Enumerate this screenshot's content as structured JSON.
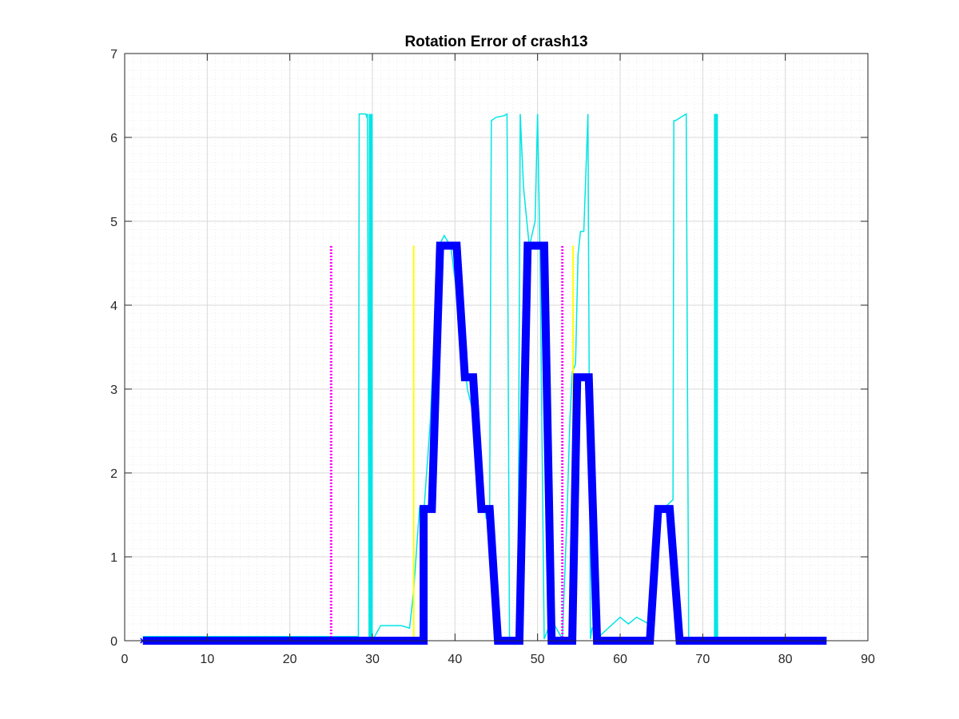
{
  "chart_data": {
    "type": "line",
    "title": "Rotation Error of crash13",
    "xlabel": "",
    "ylabel": "",
    "xlim": [
      0,
      90
    ],
    "ylim": [
      0,
      7
    ],
    "xticks": [
      0,
      10,
      20,
      30,
      40,
      50,
      60,
      70,
      80,
      90
    ],
    "yticks": [
      0,
      1,
      2,
      3,
      4,
      5,
      6,
      7
    ],
    "grid": true,
    "minor_grid": true,
    "legend": "none",
    "colors": {
      "thick_step": "#0000ff",
      "thin_trace": "#00e5e5",
      "magenta_marker": "#ff00ff",
      "yellow_marker": "#ffff00",
      "grid": "#d9d9d9",
      "minor_grid": "#ebebeb",
      "axes": "#262626"
    },
    "series": [
      {
        "style": "thick blue line with x markers",
        "x": [
          2.2,
          36.2,
          36.2,
          37.2,
          38.2,
          40.2,
          41.2,
          42.2,
          43.2,
          44.2,
          45.2,
          47.8,
          48.8,
          50.8,
          51.7,
          53.8,
          54.2,
          54.8,
          56.2,
          57.2,
          63.6,
          64.6,
          66.0,
          67.2,
          85.0
        ],
        "y": [
          0,
          0,
          1.57,
          1.57,
          4.71,
          4.71,
          3.14,
          3.14,
          1.57,
          1.57,
          0,
          0,
          4.71,
          4.71,
          0,
          0,
          0,
          3.14,
          3.14,
          0,
          0,
          1.57,
          1.57,
          0,
          0
        ]
      },
      {
        "style": "thin cyan line",
        "x": [
          2.2,
          28.0,
          28.3,
          28.4,
          29.2,
          29.3,
          29.4,
          29.6,
          30.1,
          31.0,
          32.0,
          33.5,
          34.5,
          35.0,
          35.7,
          36.2,
          37.0,
          38.0,
          38.7,
          39.5,
          40.5,
          41.5,
          42.5,
          43.0,
          43.8,
          44.2,
          44.4,
          45.0,
          46.0,
          46.3,
          46.6,
          47.0,
          47.6,
          47.9,
          48.3,
          49.0,
          49.7,
          50.0,
          50.3,
          50.8,
          51.7,
          53.0,
          53.3,
          53.6,
          53.9,
          54.2,
          54.6,
          54.9,
          55.2,
          55.6,
          56.1,
          56.4,
          56.6,
          57.2,
          57.5,
          58.0,
          60.0,
          61.0,
          62.0,
          63.5,
          64.5,
          65.5,
          66.4,
          66.5,
          66.7,
          68.0,
          68.3,
          68.6,
          69.0,
          71.5,
          71.6,
          71.8,
          72.0,
          75.0,
          80.0,
          85.0
        ],
        "y": [
          0.05,
          0.05,
          0.05,
          6.28,
          6.28,
          6.25,
          6.28,
          0.02,
          0.02,
          0.18,
          0.18,
          0.18,
          0.15,
          0.6,
          1.58,
          1.5,
          2.6,
          4.7,
          4.83,
          4.7,
          3.9,
          3.0,
          2.6,
          2.0,
          1.45,
          1.6,
          6.2,
          6.24,
          6.26,
          6.28,
          0.02,
          0.02,
          0.02,
          6.28,
          5.4,
          4.7,
          5.0,
          6.28,
          4.55,
          0.02,
          0.25,
          0.02,
          0.8,
          1.6,
          2.6,
          3.2,
          3.3,
          4.6,
          4.88,
          4.88,
          6.28,
          0.02,
          0.15,
          0.15,
          0.05,
          0.1,
          0.28,
          0.2,
          0.28,
          0.2,
          1.6,
          1.6,
          1.68,
          6.2,
          6.2,
          6.28,
          0.02,
          0.02,
          0.02,
          0.02,
          6.28,
          0.02,
          0.02,
          0.02,
          0.03,
          0.03
        ]
      },
      {
        "style": "cyan vertical bar",
        "x": [
          29.8,
          29.8
        ],
        "y": [
          0,
          6.28
        ]
      },
      {
        "style": "cyan vertical bar",
        "x": [
          71.6,
          71.6
        ],
        "y": [
          0,
          6.28
        ]
      },
      {
        "style": "magenta dotted vertical",
        "x": [
          25.0,
          25.0
        ],
        "y": [
          0,
          4.71
        ]
      },
      {
        "style": "magenta dotted vertical",
        "x": [
          53.0,
          53.0
        ],
        "y": [
          0,
          4.71
        ]
      },
      {
        "style": "yellow vertical",
        "x": [
          35.0,
          35.0
        ],
        "y": [
          0,
          4.71
        ]
      },
      {
        "style": "yellow vertical",
        "x": [
          54.3,
          54.3
        ],
        "y": [
          0,
          4.71
        ]
      }
    ]
  }
}
